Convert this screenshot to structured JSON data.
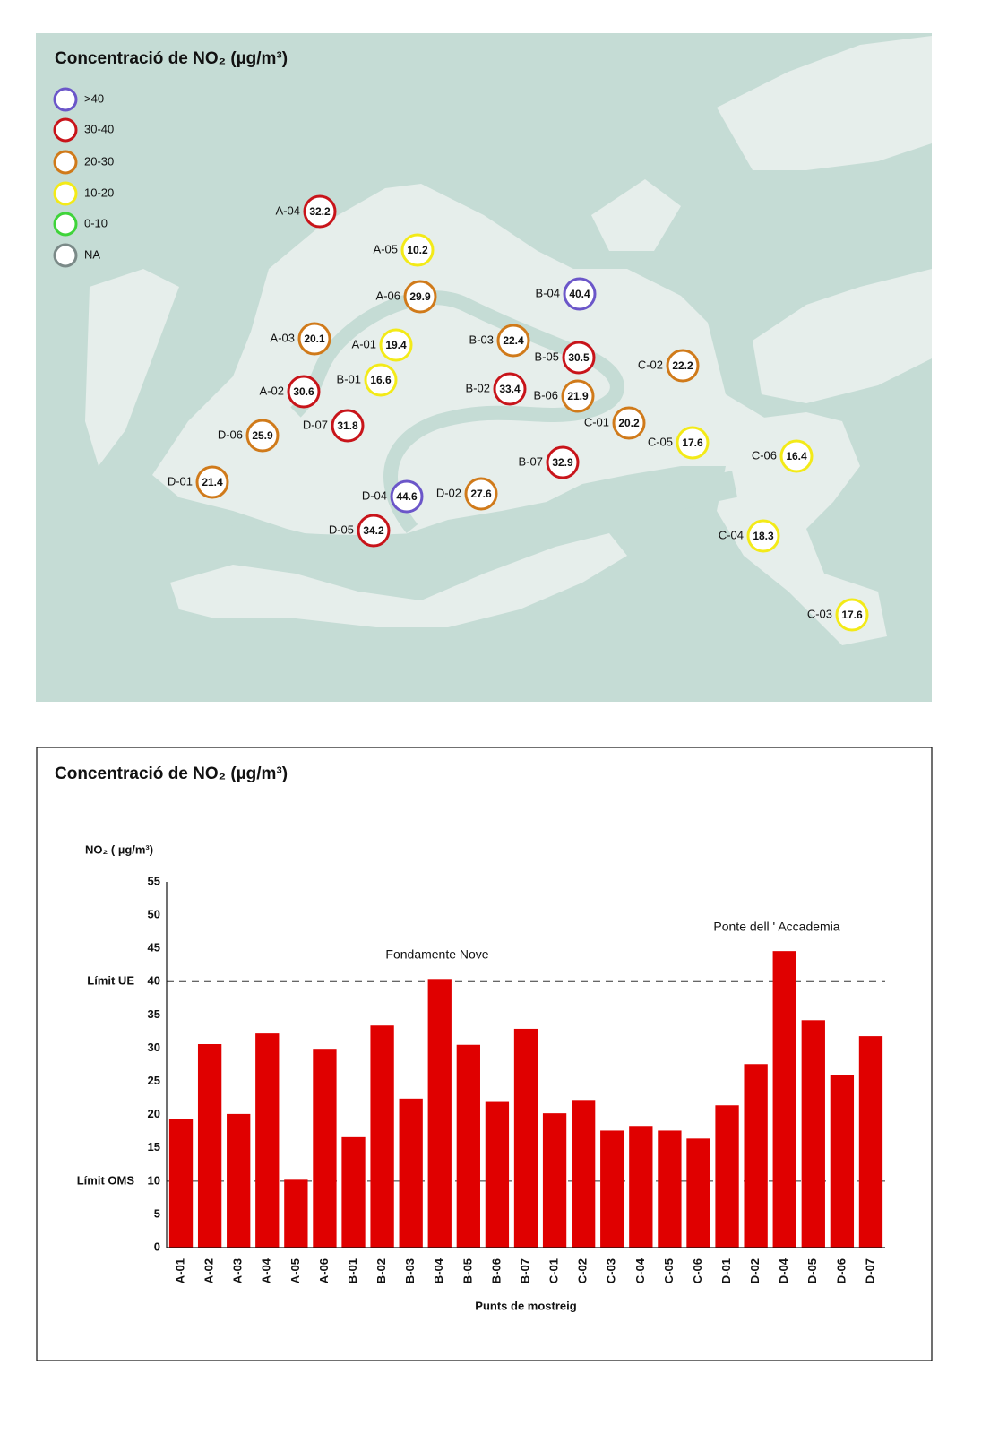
{
  "map": {
    "title": "Concentració de NO₂ (µg/m³)",
    "legend": [
      {
        "label": ">40",
        "color": "#6b56c9"
      },
      {
        "label": "30-40",
        "color": "#c8141a"
      },
      {
        "label": "20-30",
        "color": "#d07a1a"
      },
      {
        "label": "10-20",
        "color": "#f3ea18"
      },
      {
        "label": "0-10",
        "color": "#3fd43a"
      },
      {
        "label": "NA",
        "color": "#7b8a88"
      }
    ],
    "points": [
      {
        "id": "A-04",
        "value": 32.2,
        "color": "#c8141a"
      },
      {
        "id": "A-05",
        "value": 10.2,
        "color": "#f3ea18"
      },
      {
        "id": "A-06",
        "value": 29.9,
        "color": "#d07a1a"
      },
      {
        "id": "B-04",
        "value": 40.4,
        "color": "#6b56c9"
      },
      {
        "id": "A-03",
        "value": 20.1,
        "color": "#d07a1a"
      },
      {
        "id": "A-01",
        "value": 19.4,
        "color": "#f3ea18"
      },
      {
        "id": "B-03",
        "value": 22.4,
        "color": "#d07a1a"
      },
      {
        "id": "B-05",
        "value": 30.5,
        "color": "#c8141a"
      },
      {
        "id": "C-02",
        "value": 22.2,
        "color": "#d07a1a"
      },
      {
        "id": "A-02",
        "value": 30.6,
        "color": "#c8141a"
      },
      {
        "id": "B-01",
        "value": 16.6,
        "color": "#f3ea18"
      },
      {
        "id": "B-02",
        "value": 33.4,
        "color": "#c8141a"
      },
      {
        "id": "B-06",
        "value": 21.9,
        "color": "#d07a1a"
      },
      {
        "id": "D-07",
        "value": 31.8,
        "color": "#c8141a"
      },
      {
        "id": "C-01",
        "value": 20.2,
        "color": "#d07a1a"
      },
      {
        "id": "D-06",
        "value": 25.9,
        "color": "#d07a1a"
      },
      {
        "id": "C-05",
        "value": 17.6,
        "color": "#f3ea18"
      },
      {
        "id": "C-06",
        "value": 16.4,
        "color": "#f3ea18"
      },
      {
        "id": "B-07",
        "value": 32.9,
        "color": "#c8141a"
      },
      {
        "id": "D-01",
        "value": 21.4,
        "color": "#d07a1a"
      },
      {
        "id": "D-04",
        "value": 44.6,
        "color": "#6b56c9"
      },
      {
        "id": "D-02",
        "value": 27.6,
        "color": "#d07a1a"
      },
      {
        "id": "D-05",
        "value": 34.2,
        "color": "#c8141a"
      },
      {
        "id": "C-04",
        "value": 18.3,
        "color": "#f3ea18"
      },
      {
        "id": "C-03",
        "value": 17.6,
        "color": "#f3ea18"
      }
    ]
  },
  "chart_data": {
    "type": "bar",
    "title": "Concentració de NO₂ (µg/m³)",
    "y_label": "NO₂ ( µg/m³)",
    "x_label": "Punts de mostreig",
    "categories": [
      "A-01",
      "A-02",
      "A-03",
      "A-04",
      "A-05",
      "A-06",
      "B-01",
      "B-02",
      "B-03",
      "B-04",
      "B-05",
      "B-06",
      "B-07",
      "C-01",
      "C-02",
      "C-03",
      "C-04",
      "C-05",
      "C-06",
      "D-01",
      "D-02",
      "D-04",
      "D-05",
      "D-06",
      "D-07"
    ],
    "values": [
      19.4,
      30.6,
      20.1,
      32.2,
      10.2,
      29.9,
      16.6,
      33.4,
      22.4,
      40.4,
      30.5,
      21.9,
      32.9,
      20.2,
      22.2,
      17.6,
      18.3,
      17.6,
      16.4,
      21.4,
      27.6,
      44.6,
      34.2,
      25.9,
      31.8
    ],
    "color": "#e00000",
    "ylim": [
      0,
      55
    ],
    "yticks": [
      0,
      5,
      10,
      15,
      20,
      25,
      30,
      35,
      40,
      45,
      50,
      55
    ],
    "reference_lines": [
      {
        "value": 40,
        "label": "Límit UE"
      },
      {
        "value": 10,
        "label": "Límit OMS"
      }
    ],
    "annotations": [
      "Fondamente Nove",
      "Ponte dell ' Accademia"
    ],
    "grid": false
  }
}
